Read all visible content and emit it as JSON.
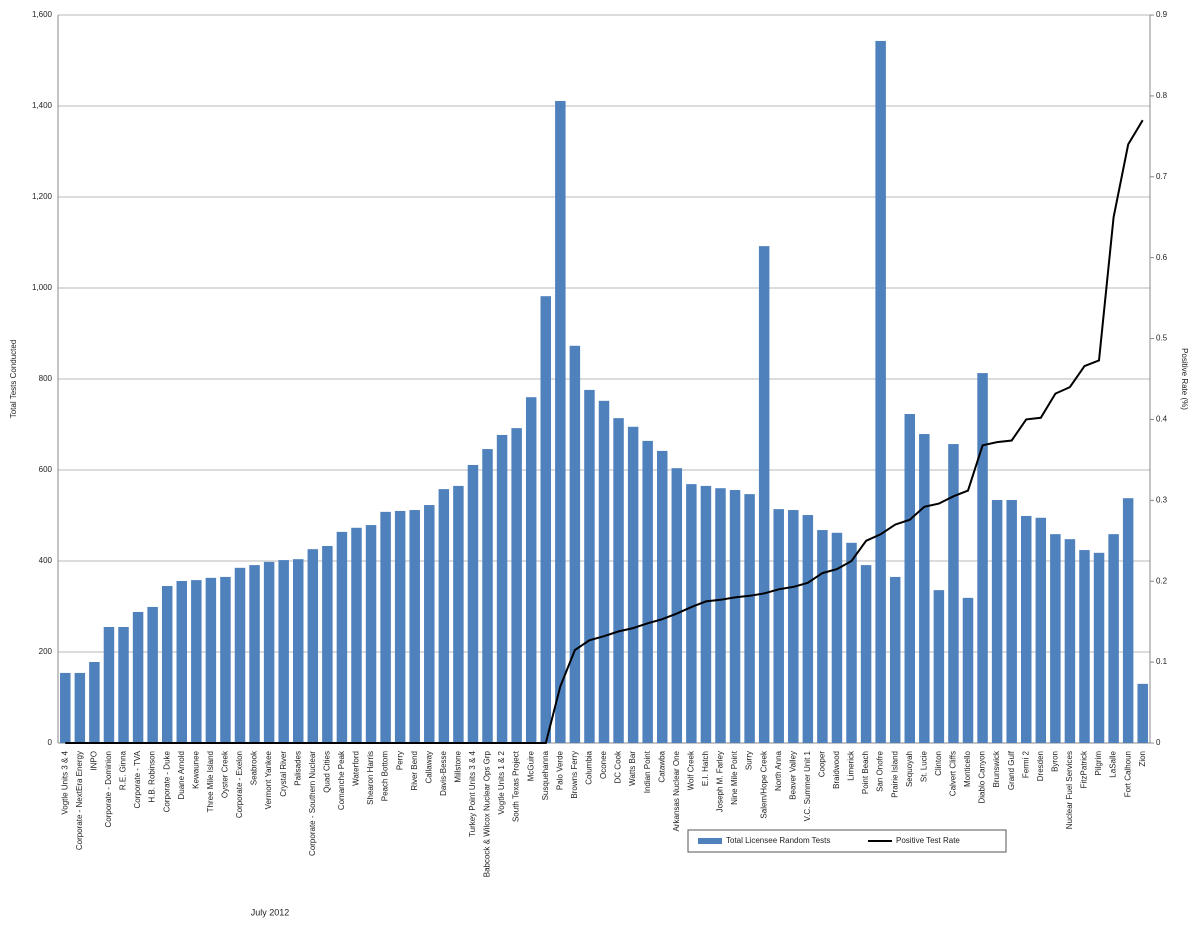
{
  "chart_data": {
    "type": "bar_line",
    "categories": [
      "Vogtle Units 3 & 4",
      "Corporate - NextEra Energy",
      "INPO",
      "Corporate - Dominion",
      "R.E. Ginna",
      "Corporate - TVA",
      "H.B. Robinson",
      "Corporate - Duke",
      "Duane Arnold",
      "Kewaunee",
      "Three Mile Island",
      "Oyster Creek",
      "Corporate - Exelon",
      "Seabrook",
      "Vermont Yankee",
      "Crystal River",
      "Palisades",
      "Corporate - Southern Nuclear",
      "Quad Cities",
      "Comanche Peak",
      "Waterford",
      "Shearon Harris",
      "Peach Bottom",
      "Perry",
      "River Bend",
      "Callaway",
      "Davis-Besse",
      "Millstone",
      "Turkey Point Units 3 & 4",
      "Babcock & Wilcox Nuclear Ops Grp",
      "Vogtle Units 1 & 2",
      "South Texas Project",
      "McGuire",
      "Susquehanna",
      "Palo Verde",
      "Browns Ferry",
      "Columbia",
      "Oconee",
      "DC Cook",
      "Watts Bar",
      "Indian Point",
      "Catawba",
      "Arkansas Nuclear One",
      "Wolf Creek",
      "E.I. Hatch",
      "Joseph M. Farley",
      "Nine Mile Point",
      "Surry",
      "Salem/Hope Creek",
      "North Anna",
      "Beaver Valley",
      "V.C. Summer Unit 1",
      "Cooper",
      "Braidwood",
      "Limerick",
      "Point Beach",
      "San Onofre",
      "Prairie Island",
      "Sequoyah",
      "St. Lucie",
      "Clinton",
      "Calvert Cliffs",
      "Monticello",
      "Diablo Canyon",
      "Brunswick",
      "Grand Gulf",
      "Fermi 2",
      "Dresden",
      "Byron",
      "Nuclear Fuel Services",
      "FitzPatrick",
      "Pilgrim",
      "LaSalle",
      "Fort Calhoun",
      "Zion"
    ],
    "series": [
      {
        "name": "Total Licensee Random Tests",
        "color": "#4f81bd",
        "values": [
          154,
          154,
          178,
          255,
          255,
          288,
          299,
          345,
          356,
          358,
          363,
          365,
          385,
          391,
          398,
          402,
          404,
          426,
          433,
          464,
          473,
          479,
          508,
          510,
          512,
          523,
          558,
          565,
          611,
          646,
          677,
          692,
          760,
          982,
          1411,
          873,
          776,
          752,
          714,
          695,
          664,
          642,
          604,
          569,
          565,
          560,
          556,
          547,
          1092,
          514,
          512,
          501,
          468,
          462,
          440,
          391,
          1543,
          365,
          723,
          679,
          336,
          657,
          319,
          813,
          534,
          534,
          499,
          495,
          459,
          448,
          424,
          418,
          459,
          538,
          130
        ]
      },
      {
        "name": "Positive Test Rate",
        "color": "#000000",
        "axis": "y2",
        "values": [
          0,
          0,
          0,
          0,
          0,
          0,
          0,
          0,
          0,
          0,
          0,
          0,
          0,
          0,
          0,
          0,
          0,
          0,
          0,
          0,
          0,
          0,
          0,
          0,
          0,
          0,
          0,
          0,
          0,
          0,
          0,
          0,
          0,
          0,
          0.07,
          0.115,
          0.127,
          0.132,
          0.138,
          0.142,
          0.148,
          0.153,
          0.16,
          0.168,
          0.175,
          0.177,
          0.18,
          0.182,
          0.185,
          0.19,
          0.193,
          0.198,
          0.21,
          0.215,
          0.225,
          0.25,
          0.258,
          0.27,
          0.276,
          0.292,
          0.296,
          0.305,
          0.312,
          0.368,
          0.372,
          0.374,
          0.4,
          0.402,
          0.432,
          0.44,
          0.466,
          0.473,
          0.65,
          0.74,
          0.77
        ]
      }
    ],
    "y_label": "Total Tests Conducted",
    "y2_label": "Positive Rate (%)",
    "ylim": [
      0,
      1600
    ],
    "yticks": [
      0,
      200,
      400,
      600,
      800,
      {
        "value": 1000,
        "label": "1,000"
      },
      {
        "value": 1200,
        "label": "1,200"
      },
      {
        "value": 1400,
        "label": "1,400"
      },
      {
        "value": 1600,
        "label": "1,600"
      }
    ],
    "y2lim": [
      0,
      0.9
    ],
    "y2ticks": [
      0,
      0.1,
      0.2,
      0.3,
      0.4,
      0.5,
      0.6,
      0.7,
      0.8,
      0.9
    ],
    "grid": true,
    "legend": "bottom-right",
    "footnote": "July 2012"
  }
}
